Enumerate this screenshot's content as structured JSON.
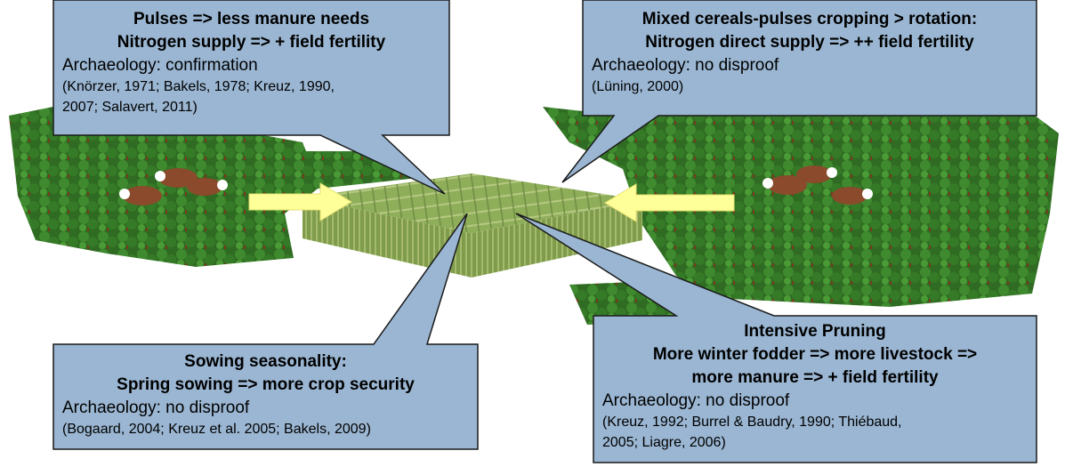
{
  "callouts": [
    {
      "heading": [
        "Pulses => less manure needs",
        "Nitrogen supply => + field fertility"
      ],
      "archaeology": "Archaeology: confirmation",
      "references": [
        "(Knörzer, 1971; Bakels, 1978; Kreuz, 1990,",
        "2007; Salavert, 2011)"
      ]
    },
    {
      "heading": [
        "Mixed cereals-pulses cropping > rotation:",
        "Nitrogen direct supply => ++ field fertility"
      ],
      "archaeology": "Archaeology: no disproof",
      "references": [
        "(Lüning, 2000)"
      ]
    },
    {
      "heading": [
        "Sowing seasonality:",
        "Spring sowing => more crop security"
      ],
      "archaeology": "Archaeology: no disproof",
      "references": [
        "(Bogaard, 2004; Kreuz et al. 2005; Bakels, 2009)"
      ]
    },
    {
      "heading": [
        "Intensive Pruning",
        "More winter fodder => more livestock =>",
        "more manure => + field fertility"
      ],
      "archaeology": "Archaeology: no disproof",
      "references": [
        "(Kreuz, 1992; Burrel & Baudry, 1990; Thiébaud,",
        "2005; Liagre, 2006)"
      ]
    }
  ]
}
